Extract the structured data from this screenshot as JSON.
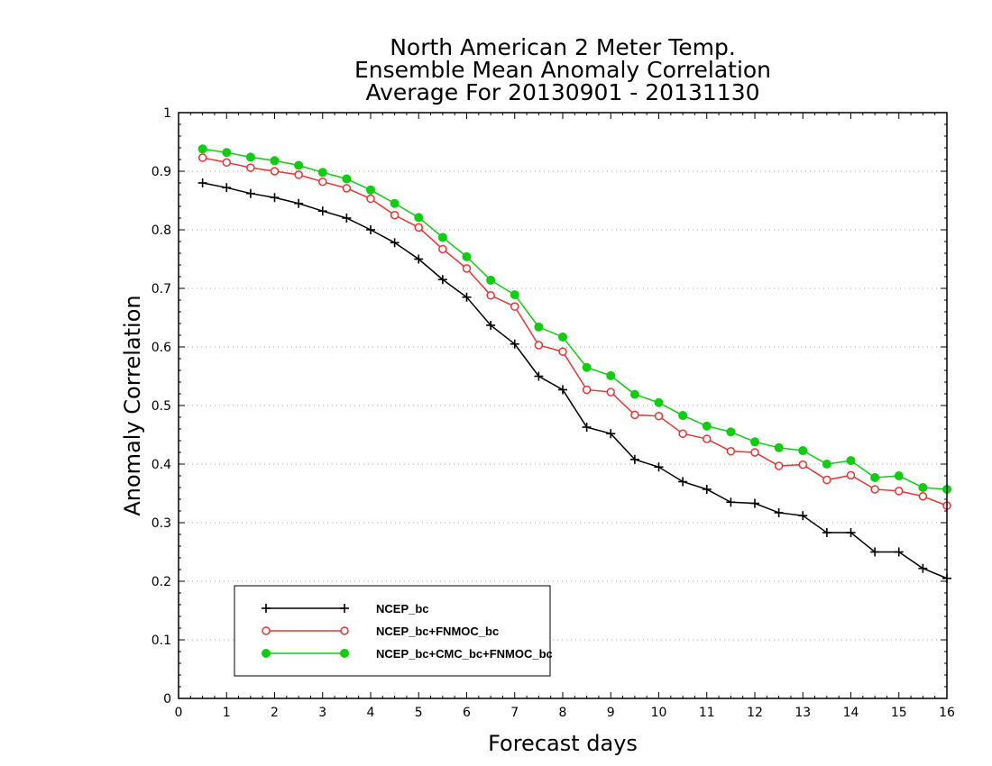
{
  "chart_data": {
    "type": "line",
    "title_lines": [
      "North American 2 Meter Temp.",
      "Ensemble Mean Anomaly Correlation",
      "Average For 20130901 - 20131130"
    ],
    "xlabel": "Forecast days",
    "ylabel": "Anomaly Correlation",
    "xlim": [
      0,
      16
    ],
    "ylim": [
      0,
      1
    ],
    "x_ticks": [
      0,
      1,
      2,
      3,
      4,
      5,
      6,
      7,
      8,
      9,
      10,
      11,
      12,
      13,
      14,
      15,
      16
    ],
    "y_ticks": [
      0,
      0.1,
      0.2,
      0.3,
      0.4,
      0.5,
      0.6,
      0.7,
      0.8,
      0.9,
      1
    ],
    "y_tick_labels": [
      "0",
      "0.1",
      "0.2",
      "0.3",
      "0.4",
      "0.5",
      "0.6",
      "0.7",
      "0.8",
      "0.9",
      "1"
    ],
    "grid": "horizontal-dotted",
    "legend_position": "bottom-left",
    "x": [
      0.5,
      1,
      1.5,
      2,
      2.5,
      3,
      3.5,
      4,
      4.5,
      5,
      5.5,
      6,
      6.5,
      7,
      7.5,
      8,
      8.5,
      9,
      9.5,
      10,
      10.5,
      11,
      11.5,
      12,
      12.5,
      13,
      13.5,
      14,
      14.5,
      15,
      15.5,
      16
    ],
    "series": [
      {
        "name": "NCEP_bc",
        "color": "#000000",
        "marker": "plus",
        "values": [
          0.88,
          0.872,
          0.862,
          0.855,
          0.845,
          0.832,
          0.82,
          0.8,
          0.778,
          0.75,
          0.715,
          0.685,
          0.637,
          0.605,
          0.55,
          0.527,
          0.463,
          0.452,
          0.408,
          0.395,
          0.37,
          0.357,
          0.335,
          0.333,
          0.317,
          0.312,
          0.283,
          0.283,
          0.25,
          0.25,
          0.222,
          0.205
        ]
      },
      {
        "name": "NCEP_bc+FNMOC_bc",
        "color": "#ee3333",
        "marker": "open-circle",
        "values": [
          0.923,
          0.915,
          0.906,
          0.9,
          0.894,
          0.882,
          0.871,
          0.853,
          0.825,
          0.804,
          0.767,
          0.734,
          0.688,
          0.669,
          0.603,
          0.592,
          0.527,
          0.523,
          0.484,
          0.482,
          0.452,
          0.443,
          0.422,
          0.42,
          0.397,
          0.399,
          0.373,
          0.381,
          0.357,
          0.354,
          0.345,
          0.329
        ]
      },
      {
        "name": "NCEP_bc+CMC_bc+FNMOC_bc",
        "color": "#11cc11",
        "marker": "filled-circle",
        "values": [
          0.938,
          0.932,
          0.924,
          0.918,
          0.91,
          0.898,
          0.887,
          0.868,
          0.845,
          0.821,
          0.787,
          0.754,
          0.714,
          0.689,
          0.634,
          0.617,
          0.565,
          0.551,
          0.519,
          0.505,
          0.483,
          0.465,
          0.455,
          0.438,
          0.428,
          0.423,
          0.4,
          0.406,
          0.377,
          0.38,
          0.36,
          0.357
        ]
      }
    ]
  }
}
